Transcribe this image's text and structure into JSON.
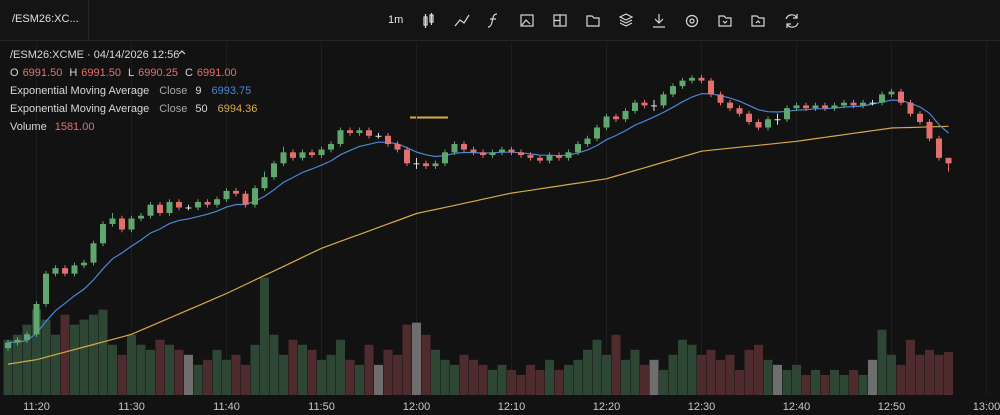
{
  "toolbar": {
    "symbol_tab": "/ESM26:XC...",
    "interval": "1m"
  },
  "chart_data": {
    "type": "candlestick",
    "title": "/ESM26:XCME · 04/14/2026 12:56",
    "ohlc_header": [
      {
        "key": "O",
        "value_label": "6991.50"
      },
      {
        "key": "H",
        "value_label": "6991.50"
      },
      {
        "key": "L",
        "value_label": "6990.25"
      },
      {
        "key": "C",
        "value_label": "6991.00"
      }
    ],
    "volume_name": "Volume",
    "volume_label": "1581.00",
    "categories": [
      null,
      null,
      null,
      "11:20",
      null,
      null,
      null,
      null,
      null,
      null,
      null,
      null,
      null,
      "11:30",
      null,
      null,
      null,
      null,
      null,
      null,
      null,
      null,
      null,
      "11:40",
      null,
      null,
      null,
      null,
      null,
      null,
      null,
      null,
      null,
      "11:50",
      null,
      null,
      null,
      null,
      null,
      null,
      null,
      null,
      null,
      "12:00",
      null,
      null,
      null,
      null,
      null,
      null,
      null,
      null,
      null,
      "12:10",
      null,
      null,
      null,
      null,
      null,
      null,
      null,
      null,
      null,
      "12:20",
      null,
      null,
      null,
      null,
      null,
      null,
      null,
      null,
      null,
      "12:30",
      null,
      null,
      null,
      null,
      null,
      null,
      null,
      null,
      null,
      "12:40",
      null,
      null,
      null,
      null,
      null,
      null,
      null,
      null,
      null,
      "12:50",
      null,
      null,
      null,
      null,
      null,
      null,
      null,
      null,
      null,
      "13:00"
    ],
    "open": [
      6974.25,
      6974.75,
      6975.0,
      6975.5,
      6978.25,
      6981.0,
      6981.5,
      6981.0,
      6981.75,
      6982.0,
      6983.75,
      6985.5,
      6986.0,
      6985.0,
      6986.0,
      6986.25,
      6987.25,
      6986.5,
      6987.5,
      6987.0,
      6987.0,
      6987.5,
      6987.25,
      6987.75,
      6988.5,
      6988.25,
      6987.25,
      6988.75,
      6989.75,
      6991.0,
      6992.0,
      6991.5,
      6992.0,
      6991.75,
      6992.25,
      6992.75,
      6994.0,
      6993.75,
      6994.0,
      6993.5,
      6993.5,
      6992.75,
      6992.25,
      6991.0,
      6991.0,
      6990.75,
      6991.0,
      6992.0,
      6992.75,
      6992.25,
      6992.0,
      6991.75,
      6992.0,
      6992.25,
      6992.0,
      6991.75,
      6991.5,
      6991.25,
      6991.75,
      6991.5,
      6992.0,
      6992.75,
      6993.25,
      6994.25,
      6995.25,
      6995.0,
      6995.75,
      6996.5,
      6996.25,
      6996.25,
      6997.25,
      6998.0,
      6998.5,
      6998.75,
      6998.5,
      6997.25,
      6996.5,
      6996.0,
      6995.5,
      6994.75,
      6994.25,
      6995.0,
      6995.0,
      6996.0,
      6996.25,
      6996.0,
      6996.25,
      6996.0,
      6996.25,
      6996.5,
      6996.25,
      6996.5,
      6996.5,
      6997.25,
      6997.5,
      6996.5,
      6995.5,
      6994.75,
      6993.25,
      6991.5,
      null,
      null,
      null,
      null
    ],
    "high": [
      6975.0,
      6975.25,
      6975.75,
      6978.5,
      6981.25,
      6981.75,
      6981.75,
      6982.0,
      6982.25,
      6984.0,
      6985.75,
      6986.5,
      6986.25,
      6986.25,
      6986.5,
      6987.5,
      6987.5,
      6987.75,
      6987.75,
      6987.25,
      6987.75,
      6987.75,
      6988.0,
      6988.75,
      6988.75,
      6988.5,
      6989.0,
      6990.25,
      6991.25,
      6992.5,
      6992.25,
      6992.25,
      6992.25,
      6992.5,
      6993.0,
      6994.25,
      6994.25,
      6994.25,
      6994.25,
      6993.75,
      6993.75,
      6993.0,
      6992.5,
      6991.5,
      6991.25,
      6991.25,
      6992.25,
      6993.0,
      6993.0,
      6992.5,
      6992.25,
      6992.25,
      6992.5,
      6992.5,
      6992.25,
      6992.0,
      6991.75,
      6992.0,
      6992.0,
      6992.25,
      6993.0,
      6993.5,
      6994.5,
      6995.5,
      6995.5,
      6996.0,
      6996.75,
      6996.75,
      6996.75,
      6997.5,
      6998.25,
      6998.75,
      6999.0,
      6999.0,
      6998.75,
      6997.5,
      6996.75,
      6996.25,
      6995.75,
      6995.0,
      6995.25,
      6995.5,
      6996.25,
      6996.5,
      6996.5,
      6996.5,
      6996.5,
      6996.5,
      6996.75,
      6996.75,
      6996.75,
      6996.75,
      6997.5,
      6997.75,
      6997.75,
      6996.75,
      6995.75,
      6995.0,
      6993.5,
      6991.5,
      null,
      null,
      null,
      null
    ],
    "low": [
      6974.0,
      6974.5,
      6974.75,
      6975.25,
      6978.0,
      6980.75,
      6980.75,
      6980.75,
      6981.5,
      6981.75,
      6983.5,
      6985.25,
      6984.75,
      6984.75,
      6985.75,
      6986.0,
      6986.25,
      6986.25,
      6986.75,
      6986.75,
      6986.75,
      6987.0,
      6987.0,
      6987.5,
      6988.0,
      6987.0,
      6987.0,
      6988.5,
      6989.5,
      6990.75,
      6991.25,
      6991.25,
      6991.5,
      6991.5,
      6992.0,
      6992.5,
      6993.5,
      6993.5,
      6993.25,
      6993.25,
      6992.5,
      6992.0,
      6990.75,
      6990.5,
      6990.5,
      6990.5,
      6990.75,
      6991.75,
      6992.0,
      6991.75,
      6991.5,
      6991.5,
      6991.75,
      6991.75,
      6991.5,
      6991.25,
      6991.0,
      6991.0,
      6991.25,
      6991.25,
      6991.75,
      6992.5,
      6993.0,
      6994.0,
      6994.75,
      6994.75,
      6995.5,
      6996.0,
      6995.75,
      6996.0,
      6997.0,
      6997.75,
      6998.25,
      6998.25,
      6997.0,
      6996.25,
      6995.75,
      6995.25,
      6994.5,
      6994.0,
      6994.0,
      6994.5,
      6994.75,
      6995.75,
      6995.75,
      6995.75,
      6995.75,
      6995.75,
      6996.0,
      6996.0,
      6996.0,
      6996.25,
      6996.25,
      6997.0,
      6996.25,
      6995.25,
      6994.5,
      6993.0,
      6991.25,
      6990.25,
      null,
      null,
      null,
      null
    ],
    "close": [
      6974.75,
      6975.0,
      6975.5,
      6978.25,
      6981.0,
      6981.5,
      6981.0,
      6981.75,
      6982.0,
      6983.75,
      6985.5,
      6986.0,
      6985.0,
      6986.0,
      6986.25,
      6987.25,
      6986.5,
      6987.5,
      6987.0,
      6987.0,
      6987.5,
      6987.25,
      6987.75,
      6988.5,
      6988.25,
      6987.25,
      6988.75,
      6989.75,
      6991.0,
      6992.0,
      6991.5,
      6992.0,
      6991.75,
      6992.25,
      6992.75,
      6994.0,
      6993.75,
      6994.0,
      6993.5,
      6993.5,
      6992.75,
      6992.25,
      6991.0,
      6991.0,
      6990.75,
      6991.0,
      6992.0,
      6992.75,
      6992.25,
      6992.0,
      6991.75,
      6992.0,
      6992.25,
      6992.0,
      6991.75,
      6991.5,
      6991.25,
      6991.75,
      6991.5,
      6992.0,
      6992.75,
      6993.25,
      6994.25,
      6995.25,
      6995.0,
      6995.75,
      6996.5,
      6996.25,
      6996.25,
      6997.25,
      6998.0,
      6998.5,
      6998.75,
      6998.5,
      6997.25,
      6996.5,
      6996.0,
      6995.5,
      6994.75,
      6994.25,
      6995.0,
      6995.0,
      6996.0,
      6996.25,
      6996.0,
      6996.25,
      6996.0,
      6996.25,
      6996.5,
      6996.25,
      6996.5,
      6996.5,
      6997.25,
      6997.5,
      6996.5,
      6995.5,
      6994.75,
      6993.25,
      6991.5,
      6991.0,
      null,
      null,
      null,
      null
    ],
    "volume": [
      2035,
      2220,
      2590,
      3145,
      2775,
      2220,
      2960,
      2590,
      2775,
      2960,
      3145,
      1850,
      1480,
      2220,
      1850,
      1665,
      2035,
      1850,
      1665,
      1480,
      1110,
      1295,
      1665,
      1295,
      1480,
      1110,
      1850,
      4329,
      2220,
      1480,
      2035,
      1850,
      1665,
      1295,
      1480,
      2035,
      1295,
      1110,
      1850,
      1110,
      1665,
      1480,
      2590,
      2664,
      2220,
      1665,
      1295,
      1110,
      1480,
      1295,
      1110,
      925,
      1110,
      925,
      740,
      1110,
      925,
      1295,
      925,
      1110,
      1295,
      1665,
      2035,
      1480,
      2220,
      1295,
      1665,
      1110,
      1295,
      925,
      1480,
      2035,
      1850,
      1480,
      1665,
      1295,
      1480,
      925,
      1665,
      1850,
      1295,
      1110,
      925,
      1110,
      740,
      925,
      740,
      925,
      740,
      925,
      740,
      1295,
      2405,
      1480,
      1110,
      2035,
      1480,
      1665,
      1480,
      1581,
      null,
      null,
      null,
      null
    ],
    "series": [
      {
        "name": "Exponential Moving Average",
        "source": "Close",
        "length": 9,
        "color": "#4a86d8",
        "value_label": "6993.75",
        "values": [
          6974.75,
          6974.8,
          6974.94,
          6975.6,
          6976.68,
          6977.64,
          6978.31,
          6979.0,
          6979.6,
          6980.43,
          6981.44,
          6982.35,
          6982.88,
          6983.5,
          6984.05,
          6984.69,
          6985.05,
          6985.54,
          6985.83,
          6985.96,
          6986.17,
          6986.39,
          6986.66,
          6987.03,
          6987.27,
          6987.27,
          6987.57,
          6988.0,
          6988.6,
          6989.28,
          6989.72,
          6990.18,
          6990.49,
          6990.84,
          6991.22,
          6991.78,
          6992.17,
          6992.54,
          6992.73,
          6992.93,
          6992.9,
          6992.77,
          6992.42,
          6992.03,
          6991.77,
          6991.62,
          6991.7,
          6991.91,
          6991.98,
          6991.98,
          6991.93,
          6991.95,
          6992.01,
          6992.01,
          6991.96,
          6991.86,
          6991.74,
          6991.74,
          6991.69,
          6991.75,
          6991.95,
          6992.21,
          6992.62,
          6993.14,
          6993.52,
          6993.96,
          6994.47,
          6994.82,
          6995.21,
          6995.62,
          6996.09,
          6996.58,
          6997.01,
          6997.31,
          6997.3,
          6997.14,
          6996.91,
          6996.63,
          6996.25,
          6995.85,
          6995.68,
          6995.65,
          6995.72,
          6995.82,
          6995.86,
          6995.94,
          6995.95,
          6996.01,
          6996.11,
          6996.14,
          6996.21,
          6996.37,
          6996.55,
          6996.74,
          6996.69,
          6996.45,
          6996.11,
          6995.54,
          6994.5,
          6993.75,
          null,
          null,
          null,
          null
        ]
      },
      {
        "name": "Exponential Moving Average",
        "source": "Close",
        "length": 50,
        "color": "#d9a94a",
        "value_label": "6994.36",
        "values": [
          6972.8,
          6972.93,
          6973.07,
          6973.2,
          6973.43,
          6973.66,
          6973.89,
          6974.12,
          6974.35,
          6974.58,
          6974.81,
          6975.04,
          6975.27,
          6975.5,
          6975.87,
          6976.24,
          6976.61,
          6976.98,
          6977.35,
          6977.72,
          6978.09,
          6978.46,
          6978.83,
          6979.2,
          6979.61,
          6980.02,
          6980.43,
          6980.84,
          6981.25,
          6981.66,
          6982.07,
          6982.48,
          6982.89,
          6983.3,
          6983.62,
          6983.93,
          6984.25,
          6984.56,
          6984.88,
          6985.19,
          6985.51,
          6985.82,
          6986.14,
          6986.45,
          6986.64,
          6986.82,
          6987.01,
          6987.19,
          6987.38,
          6987.56,
          6987.75,
          6987.93,
          6988.12,
          6988.3,
          6988.43,
          6988.56,
          6988.69,
          6988.82,
          6988.95,
          6989.08,
          6989.21,
          6989.34,
          6989.47,
          6989.6,
          6989.85,
          6990.1,
          6990.35,
          6990.6,
          6990.85,
          6991.1,
          6991.35,
          6991.6,
          6991.85,
          6992.1,
          6992.19,
          6992.28,
          6992.37,
          6992.46,
          6992.55,
          6992.64,
          6992.73,
          6992.82,
          6992.91,
          6993.0,
          6993.12,
          6993.24,
          6993.36,
          6993.48,
          6993.6,
          6993.72,
          6993.84,
          6993.96,
          6994.08,
          6994.2,
          6994.23,
          6994.25,
          6994.28,
          6994.31,
          6994.33,
          6994.36,
          null,
          null,
          null,
          null
        ]
      }
    ],
    "ylim": [
      6970,
      7002
    ],
    "vlim": [
      0,
      13000
    ],
    "grid": true,
    "up_color": "#5fa66f",
    "down_color": "#e3706f",
    "doji_color": "#e0e0e0",
    "volume_up_color": "#2e4634",
    "volume_down_color": "#4e2b2d",
    "volume_doji_color": "#6e6e6e"
  }
}
